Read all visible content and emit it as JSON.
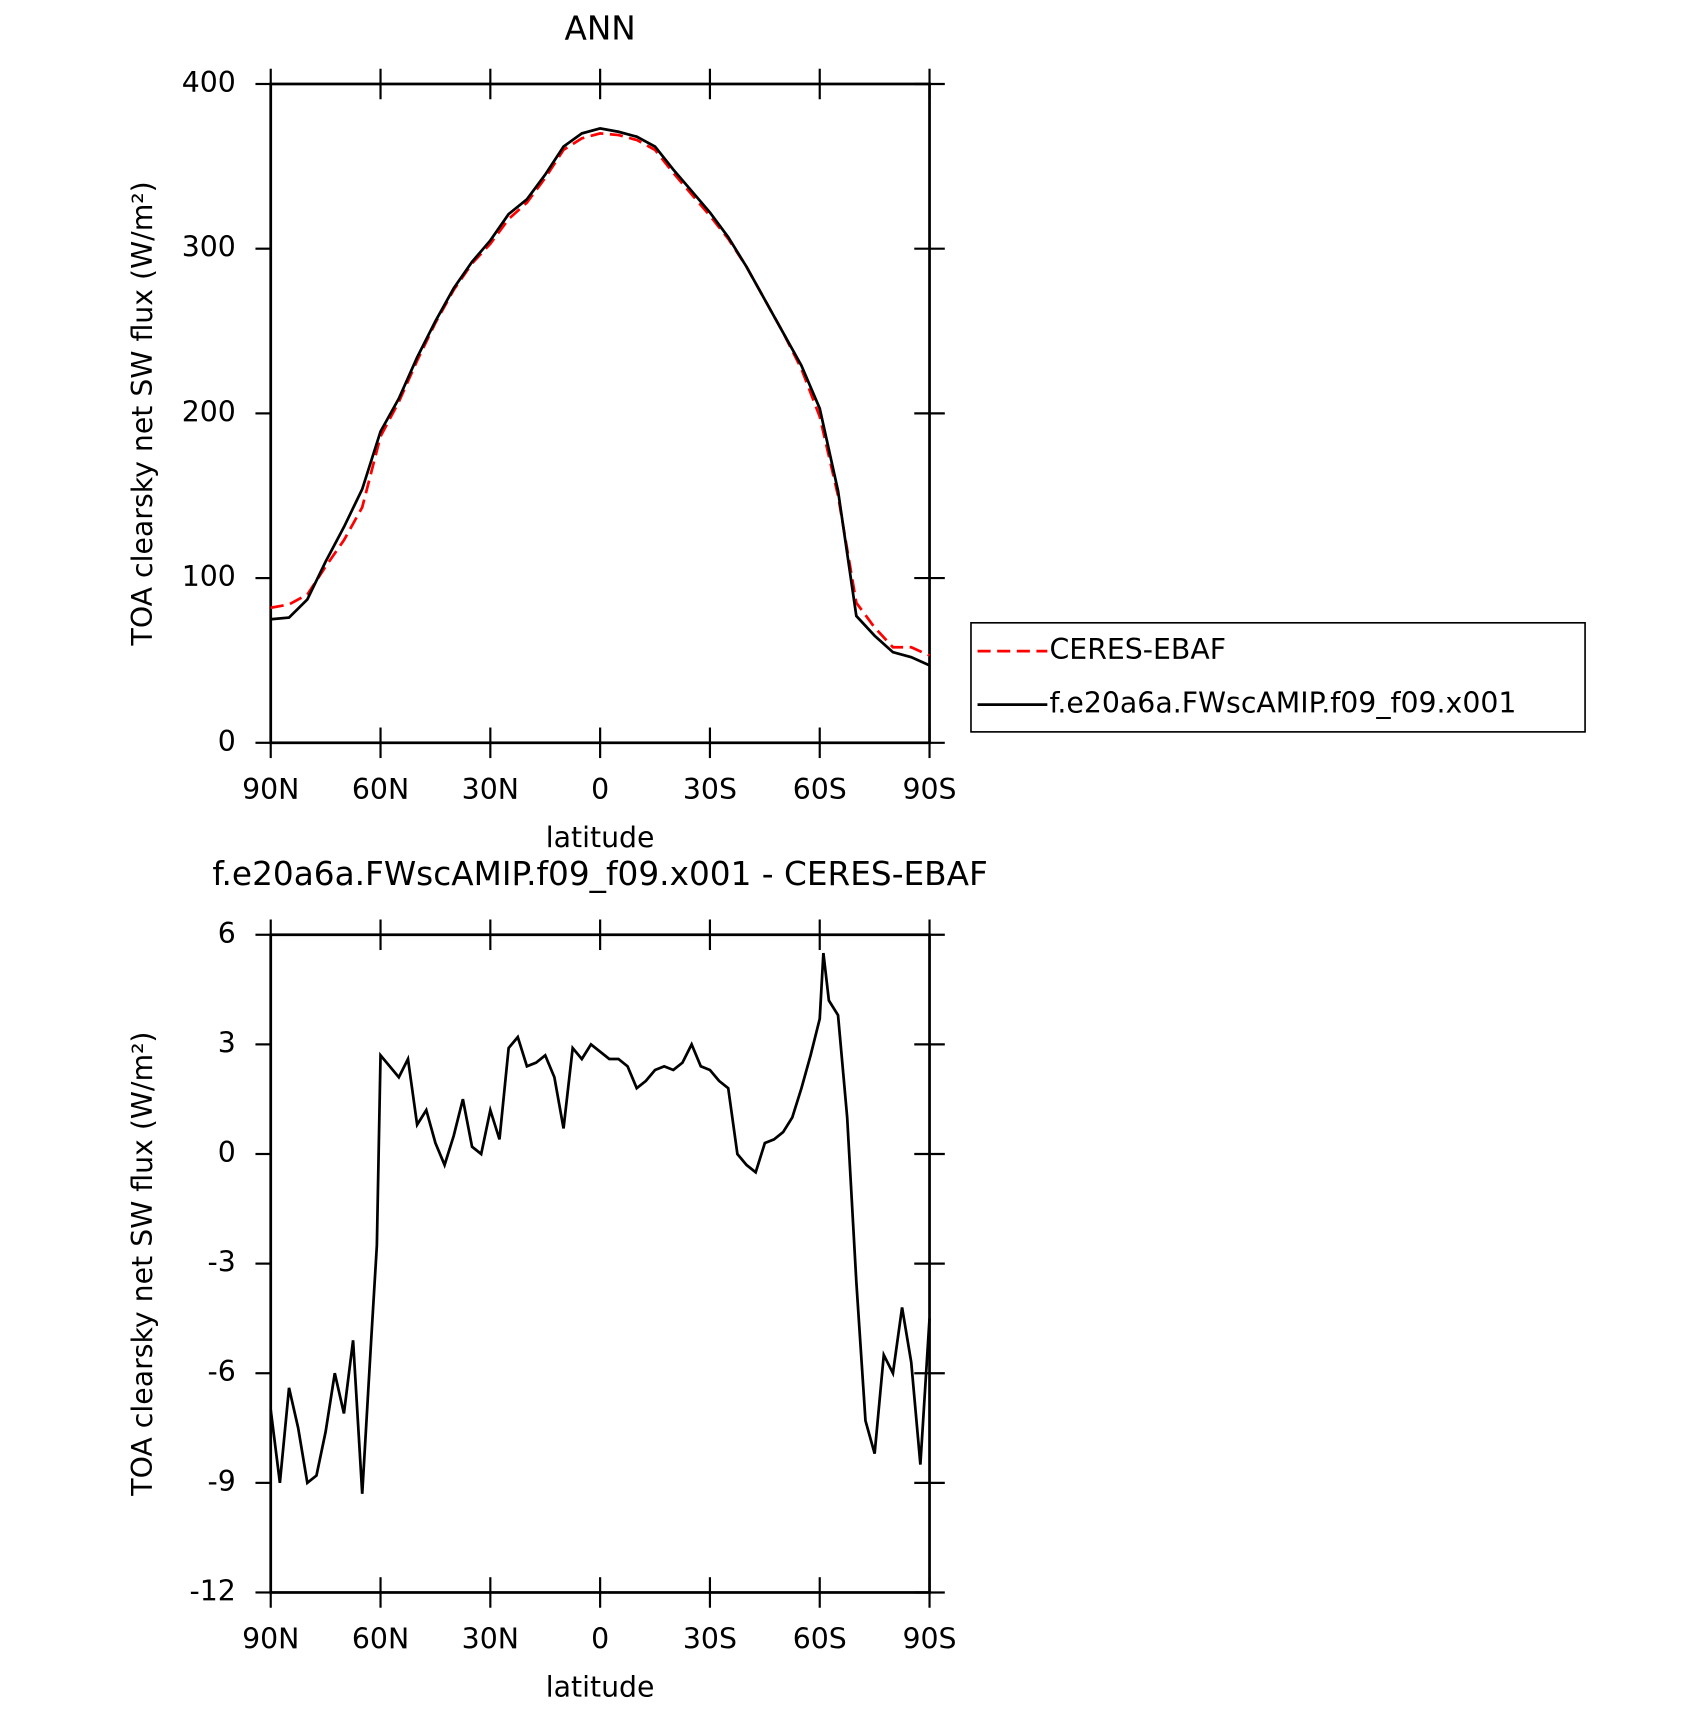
{
  "chart_data": [
    {
      "type": "line",
      "title": "ANN",
      "xlabel": "latitude",
      "ylabel": "TOA clearsky net SW flux (W/m²)",
      "x": [
        90,
        85,
        80,
        75,
        70,
        65,
        60,
        55,
        50,
        45,
        40,
        35,
        30,
        25,
        20,
        15,
        10,
        5,
        0,
        -5,
        -10,
        -15,
        -20,
        -25,
        -30,
        -35,
        -40,
        -45,
        -50,
        -55,
        -60,
        -65,
        -70,
        -75,
        -80,
        -85,
        -90
      ],
      "series": [
        {
          "name": "CERES-EBAF",
          "color": "#ff0000",
          "linestyle": "dashed",
          "values": [
            82,
            84,
            90,
            107,
            123,
            143,
            186,
            207,
            232,
            255,
            275,
            291,
            303,
            318,
            328,
            343,
            360,
            367,
            370,
            369,
            366,
            360,
            346,
            333,
            320,
            306,
            289,
            269,
            249,
            227,
            198,
            150,
            85,
            70,
            58,
            58,
            53
          ]
        },
        {
          "name": "f.e20a6a.FWscAMIP.f09_f09.x001",
          "color": "#000000",
          "linestyle": "solid",
          "values": [
            75,
            76,
            87,
            110,
            131,
            154,
            189,
            209,
            234,
            256,
            276,
            292,
            305,
            321,
            330,
            345,
            362,
            370,
            373,
            371,
            368,
            362,
            348,
            335,
            322,
            307,
            289,
            269,
            249,
            229,
            203,
            153,
            77,
            65,
            55,
            52,
            47
          ]
        }
      ],
      "xlim": [
        90,
        -90
      ],
      "xticks": [
        {
          "value": 90,
          "label": "90N"
        },
        {
          "value": 60,
          "label": "60N"
        },
        {
          "value": 30,
          "label": "30N"
        },
        0,
        {
          "value": -30,
          "label": "30S"
        },
        {
          "value": -60,
          "label": "60S"
        },
        {
          "value": -90,
          "label": "90S"
        }
      ],
      "ylim": [
        0,
        400
      ],
      "yticks": [
        0,
        100,
        200,
        300,
        400
      ],
      "legend": "right"
    },
    {
      "type": "line",
      "title": "f.e20a6a.FWscAMIP.f09_f09.x001 - CERES-EBAF",
      "xlabel": "latitude",
      "ylabel": "TOA clearsky net SW flux (W/m²)",
      "x": [
        90,
        87.5,
        85,
        82.5,
        80,
        77.5,
        75,
        72.5,
        70,
        67.5,
        65,
        62.5,
        61,
        60,
        57.5,
        55,
        52.5,
        50,
        47.5,
        45,
        42.5,
        40,
        37.5,
        35,
        32.5,
        30,
        27.5,
        25,
        22.5,
        20,
        17.5,
        15,
        12.5,
        10,
        7.5,
        5,
        2.5,
        0,
        -2.5,
        -5,
        -7.5,
        -10,
        -12.5,
        -15,
        -17.5,
        -20,
        -22.5,
        -25,
        -27.5,
        -30,
        -32.5,
        -35,
        -37.5,
        -40,
        -42.5,
        -45,
        -47.5,
        -50,
        -52.5,
        -55,
        -57.5,
        -60,
        -61,
        -62.5,
        -65,
        -67.5,
        -70,
        -72.5,
        -75,
        -77.5,
        -80,
        -82.5,
        -85,
        -87.5,
        -90
      ],
      "series": [
        {
          "color": "#000000",
          "values": [
            -7,
            -9,
            -6.4,
            -7.5,
            -9,
            -8.8,
            -7.6,
            -6,
            -7.1,
            -5.1,
            -9.3,
            -5,
            -2.5,
            2.7,
            2.4,
            2.1,
            2.6,
            0.8,
            1.2,
            0.3,
            -0.3,
            0.5,
            1.5,
            0.2,
            0,
            1.2,
            0.4,
            2.9,
            3.2,
            2.4,
            2.5,
            2.7,
            2.1,
            0.7,
            2.9,
            2.6,
            3,
            2.8,
            2.6,
            2.6,
            2.4,
            1.8,
            2,
            2.3,
            2.4,
            2.3,
            2.5,
            3,
            2.4,
            2.3,
            2,
            1.8,
            0,
            -0.3,
            -0.5,
            0.3,
            0.4,
            0.6,
            1,
            1.8,
            2.7,
            3.7,
            5.5,
            4.2,
            3.8,
            1,
            -3.5,
            -7.3,
            -8.2,
            -5.5,
            -6,
            -4.2,
            -5.7,
            -8.5,
            -4.5
          ]
        }
      ],
      "xlim": [
        90,
        -90
      ],
      "xticks": [
        {
          "value": 90,
          "label": "90N"
        },
        {
          "value": 60,
          "label": "60N"
        },
        {
          "value": 30,
          "label": "30N"
        },
        0,
        {
          "value": -30,
          "label": "30S"
        },
        {
          "value": -60,
          "label": "60S"
        },
        {
          "value": -90,
          "label": "90S"
        }
      ],
      "ylim": [
        -12,
        6
      ],
      "yticks": [
        -12,
        -9,
        -6,
        -3,
        0,
        3,
        6
      ]
    }
  ]
}
